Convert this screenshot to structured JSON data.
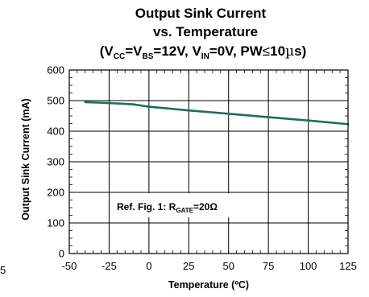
{
  "chart_data": {
    "type": "line",
    "title_lines": [
      "Output Sink Current",
      "vs. Temperature"
    ],
    "conditions": {
      "open": "(V",
      "vcc_sub": "CC",
      "eq1": "=V",
      "vbs_sub": "BS",
      "eq2": "=12V, V",
      "vin_sub": "IN",
      "eq3": "=0V, PW",
      "le": "≤",
      "eq4": "10",
      "mu": "µ",
      "tail": "s)"
    },
    "xlabel": "Temperature (ºC)",
    "ylabel": "Output Sink Current (mA)",
    "xlim": [
      -50,
      125
    ],
    "ylim": [
      0,
      600
    ],
    "x_ticks": [
      "-50",
      "-25",
      "0",
      "25",
      "50",
      "75",
      "100",
      "125"
    ],
    "y_ticks": [
      "0",
      "100",
      "200",
      "300",
      "400",
      "500",
      "600"
    ],
    "stray_label": "5",
    "annotation": {
      "prefix": "Ref. Fig. 1: R",
      "sub": "GATE",
      "suffix": "=20Ω"
    },
    "series": [
      {
        "color": "#1f6e5e",
        "x": [
          -40,
          -25,
          -10,
          0,
          25,
          50,
          75,
          100,
          125
        ],
        "y": [
          495,
          492,
          488,
          480,
          468,
          457,
          446,
          435,
          423
        ]
      }
    ],
    "grid": true
  }
}
